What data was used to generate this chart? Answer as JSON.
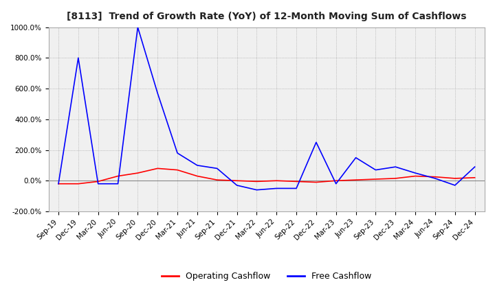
{
  "title": "[8113]  Trend of Growth Rate (YoY) of 12-Month Moving Sum of Cashflows",
  "background_color": "#ffffff",
  "plot_bg_color": "#f0f0f0",
  "grid_color": "#999999",
  "ylim": [
    -200,
    1000
  ],
  "yticks": [
    -200,
    0,
    200,
    400,
    600,
    800,
    1000
  ],
  "legend_labels": [
    "Operating Cashflow",
    "Free Cashflow"
  ],
  "legend_colors": [
    "red",
    "blue"
  ],
  "x_labels": [
    "Sep-19",
    "Dec-19",
    "Mar-20",
    "Jun-20",
    "Sep-20",
    "Dec-20",
    "Mar-21",
    "Jun-21",
    "Sep-21",
    "Dec-21",
    "Mar-22",
    "Jun-22",
    "Sep-22",
    "Dec-22",
    "Mar-23",
    "Jun-23",
    "Sep-23",
    "Dec-23",
    "Mar-24",
    "Jun-24",
    "Sep-24",
    "Dec-24"
  ],
  "operating_cashflow": [
    -20,
    -20,
    -5,
    30,
    50,
    80,
    70,
    30,
    5,
    0,
    -5,
    0,
    -5,
    -10,
    0,
    5,
    10,
    15,
    30,
    25,
    15,
    20
  ],
  "free_cashflow": [
    -20,
    800,
    -20,
    -20,
    1000,
    570,
    180,
    100,
    80,
    -30,
    -60,
    -50,
    -50,
    250,
    -20,
    150,
    70,
    90,
    50,
    15,
    -30,
    90
  ]
}
